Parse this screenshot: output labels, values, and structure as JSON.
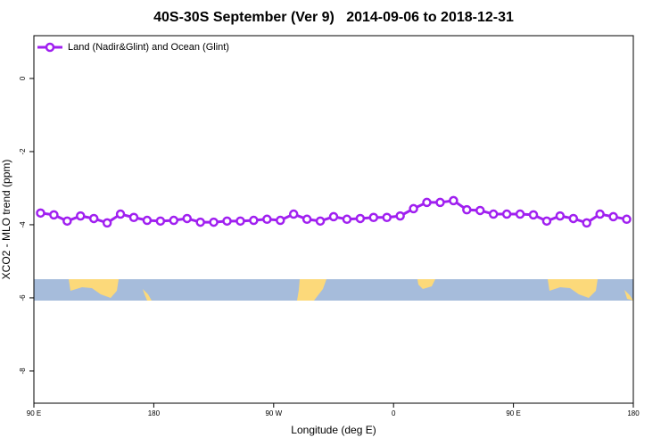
{
  "chart_data": {
    "type": "line",
    "title": "40S-30S September (Ver 9)   2014-09-06 to 2018-12-31",
    "x_label": "Longitude (deg E)",
    "y_label": "XCO2 - MLO trend (ppm)",
    "xlim": [
      90,
      540
    ],
    "ylim": [
      -8.88,
      1.17
    ],
    "xticks": [
      {
        "value": 90,
        "label": "90 E"
      },
      {
        "value": 180,
        "label": "180"
      },
      {
        "value": 270,
        "label": "90 W"
      },
      {
        "value": 360,
        "label": "0"
      },
      {
        "value": 450,
        "label": "90 E"
      },
      {
        "value": 540,
        "label": "180"
      }
    ],
    "yticks": [
      0,
      -2,
      -4,
      -6,
      -8
    ],
    "legend": "top-left",
    "x": [
      95,
      105,
      115,
      125,
      135,
      145,
      155,
      165,
      175,
      185,
      195,
      205,
      215,
      225,
      235,
      245,
      255,
      265,
      275,
      285,
      295,
      305,
      315,
      325,
      335,
      345,
      355,
      365,
      375,
      385,
      395,
      405,
      415,
      425,
      435,
      445,
      455,
      465,
      475,
      485,
      495,
      505,
      515,
      525,
      535
    ],
    "series": [
      {
        "name": "Land (Nadir&Glint) and Ocean (Glint)",
        "color": "#a020f0",
        "values": [
          -3.68,
          -3.73,
          -3.9,
          -3.76,
          -3.83,
          -3.95,
          -3.71,
          -3.8,
          -3.88,
          -3.9,
          -3.88,
          -3.83,
          -3.93,
          -3.93,
          -3.9,
          -3.9,
          -3.88,
          -3.85,
          -3.88,
          -3.71,
          -3.85,
          -3.9,
          -3.78,
          -3.85,
          -3.83,
          -3.8,
          -3.8,
          -3.76,
          -3.56,
          -3.39,
          -3.39,
          -3.34,
          -3.59,
          -3.61,
          -3.71,
          -3.71,
          -3.71,
          -3.73,
          -3.9,
          -3.76,
          -3.83,
          -3.95,
          -3.71,
          -3.78,
          -3.85
        ]
      }
    ]
  }
}
